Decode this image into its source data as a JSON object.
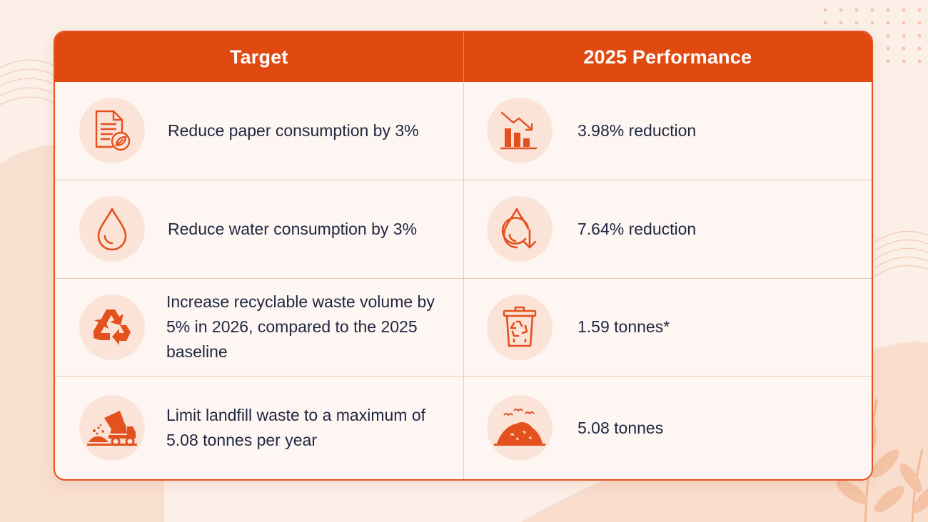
{
  "colors": {
    "accent": "#e04a10",
    "icon": "#e5501f",
    "icon_background": "#fbe3d7",
    "text": "#1f2740",
    "page_background": "#fbefe8"
  },
  "table": {
    "headers": [
      "Target",
      "2025 Performance"
    ],
    "rows": [
      {
        "target_icon": "document-leaf-icon",
        "target": "Reduce paper consumption by 3%",
        "performance_icon": "declining-bar-chart-icon",
        "performance": "3.98% reduction"
      },
      {
        "target_icon": "water-drop-icon",
        "target": "Reduce water consumption by 3%",
        "performance_icon": "water-drop-down-arrow-icon",
        "performance": "7.64% reduction"
      },
      {
        "target_icon": "recycle-icon",
        "target": "Increase recyclable waste volume by 5% in 2026, compared to the 2025 baseline",
        "performance_icon": "recycling-bin-icon",
        "performance": "1.59 tonnes*"
      },
      {
        "target_icon": "dump-truck-icon",
        "target": "Limit landfill waste to a maximum of 5.08 tonnes per year",
        "performance_icon": "landfill-mound-icon",
        "performance": "5.08 tonnes"
      }
    ]
  }
}
